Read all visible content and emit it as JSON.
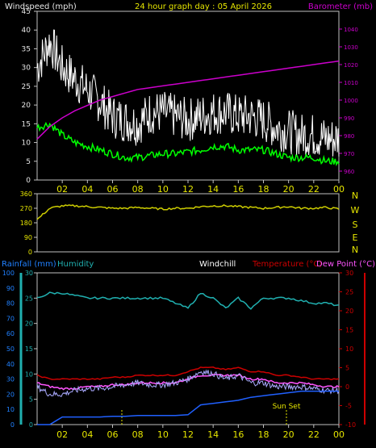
{
  "header": {
    "left_label": "Windspeed (mph)",
    "title": "24 hour graph day : 05 April 2026",
    "right_label": "Barometer (mb)"
  },
  "bottom_header": {
    "rainfall_label": "Rainfall (mm)",
    "humidity_label": "Humidity",
    "windchill_label": "Windchill",
    "temperature_label": "Temperature (°C)",
    "dewpoint_label": "Dew Point (°C)",
    "sunset_label": "Sun Set"
  },
  "colors": {
    "gust": "#ffffff",
    "avg_wind": "#00ff00",
    "barometer": "#cc00cc",
    "direction": "#cccc00",
    "humidity": "#20b0b0",
    "rainfall": "#2060ff",
    "temperature": "#cc0000",
    "dewpoint": "#ff55ff",
    "windchill": "#aaaaff",
    "frame": "#c0c0c0"
  },
  "chart_data": [
    {
      "type": "line",
      "name": "wind-barometer",
      "x_tick_labels": [
        "02",
        "04",
        "06",
        "08",
        "10",
        "12",
        "14",
        "16",
        "18",
        "20",
        "22",
        "00"
      ],
      "y_left_ticks": [
        "0",
        "5",
        "10",
        "15",
        "20",
        "25",
        "30",
        "35",
        "40",
        "45"
      ],
      "y_right_ticks": [
        "960",
        "970",
        "980",
        "990",
        "1000",
        "1010",
        "1020",
        "1030",
        "1040"
      ],
      "ylim_left": [
        0,
        45
      ],
      "ylim_right": [
        955,
        1050
      ],
      "gust_approx": [
        [
          0,
          30
        ],
        [
          1,
          37
        ],
        [
          2,
          30
        ],
        [
          3,
          27
        ],
        [
          4,
          24
        ],
        [
          5,
          21
        ],
        [
          6,
          17
        ],
        [
          7,
          16
        ],
        [
          8,
          15
        ],
        [
          9,
          18
        ],
        [
          10,
          18
        ],
        [
          11,
          17
        ],
        [
          12,
          16
        ],
        [
          13,
          17
        ],
        [
          14,
          18
        ],
        [
          15,
          18
        ],
        [
          16,
          17
        ],
        [
          17,
          17
        ],
        [
          18,
          16
        ],
        [
          19,
          14
        ],
        [
          20,
          13
        ],
        [
          21,
          12
        ],
        [
          22,
          12
        ],
        [
          23,
          11
        ],
        [
          24,
          11
        ]
      ],
      "avg_wind_approx": [
        [
          0,
          14
        ],
        [
          1,
          15
        ],
        [
          2,
          12
        ],
        [
          3,
          10
        ],
        [
          4,
          9
        ],
        [
          5,
          8
        ],
        [
          6,
          7
        ],
        [
          7,
          6
        ],
        [
          8,
          6
        ],
        [
          9,
          6.5
        ],
        [
          10,
          7
        ],
        [
          11,
          7
        ],
        [
          12,
          7.5
        ],
        [
          13,
          8
        ],
        [
          14,
          9
        ],
        [
          15,
          9
        ],
        [
          16,
          8
        ],
        [
          17,
          8
        ],
        [
          18,
          8
        ],
        [
          19,
          7
        ],
        [
          20,
          6
        ],
        [
          21,
          6
        ],
        [
          22,
          6
        ],
        [
          23,
          5
        ],
        [
          24,
          5
        ]
      ],
      "barometer_approx": [
        [
          0,
          978
        ],
        [
          1,
          985
        ],
        [
          2,
          990
        ],
        [
          3,
          994
        ],
        [
          4,
          997
        ],
        [
          5,
          1000
        ],
        [
          6,
          1002
        ],
        [
          7,
          1004
        ],
        [
          8,
          1006
        ],
        [
          9,
          1007
        ],
        [
          10,
          1008
        ],
        [
          11,
          1009
        ],
        [
          12,
          1010
        ],
        [
          13,
          1011
        ],
        [
          14,
          1012
        ],
        [
          15,
          1013
        ],
        [
          16,
          1014
        ],
        [
          17,
          1015
        ],
        [
          18,
          1016
        ],
        [
          19,
          1017
        ],
        [
          20,
          1018
        ],
        [
          21,
          1019
        ],
        [
          22,
          1020
        ],
        [
          23,
          1021
        ],
        [
          24,
          1022
        ]
      ]
    },
    {
      "type": "line",
      "name": "wind-direction",
      "y_ticks": [
        "0",
        "90",
        "180",
        "270",
        "360"
      ],
      "compass_labels": [
        "N",
        "W",
        "S",
        "E",
        "N"
      ],
      "ylim": [
        0,
        360
      ],
      "direction_approx": [
        [
          0,
          200
        ],
        [
          1,
          270
        ],
        [
          2,
          285
        ],
        [
          3,
          285
        ],
        [
          4,
          280
        ],
        [
          5,
          275
        ],
        [
          6,
          270
        ],
        [
          7,
          270
        ],
        [
          8,
          275
        ],
        [
          9,
          270
        ],
        [
          10,
          265
        ],
        [
          11,
          270
        ],
        [
          12,
          270
        ],
        [
          13,
          280
        ],
        [
          14,
          285
        ],
        [
          15,
          285
        ],
        [
          16,
          280
        ],
        [
          17,
          275
        ],
        [
          18,
          270
        ],
        [
          19,
          275
        ],
        [
          20,
          280
        ],
        [
          21,
          270
        ],
        [
          22,
          270
        ],
        [
          23,
          275
        ],
        [
          24,
          265
        ]
      ]
    },
    {
      "type": "line",
      "name": "temperature-humidity-rain",
      "y_rain_ticks": [
        "0",
        "10",
        "20",
        "30",
        "40",
        "50",
        "60",
        "70",
        "80",
        "90",
        "100"
      ],
      "y_humidity_ticks": [
        "0",
        "5",
        "10",
        "15",
        "20",
        "25",
        "30"
      ],
      "y_temp_ticks": [
        "-10",
        "-5",
        "0",
        "5",
        "10",
        "15",
        "20",
        "25",
        "30"
      ],
      "ylim_temp": [
        -10,
        30
      ],
      "humidity_approx": [
        [
          0,
          25
        ],
        [
          1,
          26
        ],
        [
          2,
          26
        ],
        [
          3,
          25.5
        ],
        [
          4,
          25
        ],
        [
          5,
          25
        ],
        [
          6,
          25
        ],
        [
          7,
          25
        ],
        [
          8,
          25
        ],
        [
          9,
          25
        ],
        [
          10,
          25
        ],
        [
          11,
          24
        ],
        [
          12,
          23
        ],
        [
          13,
          26
        ],
        [
          14,
          25
        ],
        [
          15,
          23
        ],
        [
          16,
          25
        ],
        [
          17,
          23
        ],
        [
          18,
          25
        ],
        [
          19,
          25
        ],
        [
          20,
          25
        ],
        [
          21,
          24.5
        ],
        [
          22,
          24
        ],
        [
          23,
          24
        ],
        [
          24,
          23.5
        ]
      ],
      "temperature_approx": [
        [
          0,
          3
        ],
        [
          1,
          2
        ],
        [
          2,
          2
        ],
        [
          3,
          2
        ],
        [
          4,
          2
        ],
        [
          5,
          2
        ],
        [
          6,
          2.5
        ],
        [
          7,
          2.5
        ],
        [
          8,
          3
        ],
        [
          9,
          3
        ],
        [
          10,
          3
        ],
        [
          11,
          3
        ],
        [
          12,
          4
        ],
        [
          13,
          5
        ],
        [
          14,
          5
        ],
        [
          15,
          4.5
        ],
        [
          16,
          5
        ],
        [
          17,
          4
        ],
        [
          18,
          4
        ],
        [
          19,
          3
        ],
        [
          20,
          3
        ],
        [
          21,
          2.5
        ],
        [
          22,
          2
        ],
        [
          23,
          2
        ],
        [
          24,
          2
        ]
      ],
      "dewpoint_approx": [
        [
          0,
          1
        ],
        [
          1,
          0
        ],
        [
          2,
          -0.5
        ],
        [
          3,
          -0.5
        ],
        [
          4,
          0
        ],
        [
          5,
          0
        ],
        [
          6,
          0.5
        ],
        [
          7,
          0.5
        ],
        [
          8,
          1
        ],
        [
          9,
          1
        ],
        [
          10,
          1
        ],
        [
          11,
          1
        ],
        [
          12,
          2
        ],
        [
          13,
          3
        ],
        [
          14,
          3
        ],
        [
          15,
          3
        ],
        [
          16,
          3
        ],
        [
          17,
          2
        ],
        [
          18,
          2
        ],
        [
          19,
          1
        ],
        [
          20,
          1
        ],
        [
          21,
          1
        ],
        [
          22,
          0.5
        ],
        [
          23,
          0
        ],
        [
          24,
          0
        ]
      ],
      "windchill_approx": [
        [
          0,
          0
        ],
        [
          1,
          -2
        ],
        [
          2,
          -2
        ],
        [
          3,
          -1
        ],
        [
          4,
          -0.5
        ],
        [
          5,
          -0.5
        ],
        [
          6,
          0
        ],
        [
          7,
          0.5
        ],
        [
          8,
          1
        ],
        [
          9,
          0.5
        ],
        [
          10,
          0.5
        ],
        [
          11,
          1
        ],
        [
          12,
          2
        ],
        [
          13,
          4
        ],
        [
          14,
          3.5
        ],
        [
          15,
          2
        ],
        [
          16,
          3
        ],
        [
          17,
          1
        ],
        [
          18,
          1
        ],
        [
          19,
          0
        ],
        [
          20,
          0
        ],
        [
          21,
          0
        ],
        [
          22,
          -0.5
        ],
        [
          23,
          -1
        ],
        [
          24,
          -1
        ]
      ],
      "rainfall_approx": [
        [
          0,
          0
        ],
        [
          1,
          0
        ],
        [
          2,
          5
        ],
        [
          3,
          5
        ],
        [
          4,
          5
        ],
        [
          5,
          5
        ],
        [
          6,
          5.5
        ],
        [
          7,
          5.5
        ],
        [
          8,
          6
        ],
        [
          9,
          6
        ],
        [
          10,
          6
        ],
        [
          11,
          6
        ],
        [
          12,
          6.5
        ],
        [
          13,
          13
        ],
        [
          14,
          14
        ],
        [
          15,
          15
        ],
        [
          16,
          16
        ],
        [
          17,
          18
        ],
        [
          18,
          19
        ],
        [
          19,
          20
        ],
        [
          20,
          21
        ],
        [
          21,
          22
        ],
        [
          22,
          22
        ],
        [
          23,
          22
        ],
        [
          24,
          22
        ]
      ]
    }
  ]
}
